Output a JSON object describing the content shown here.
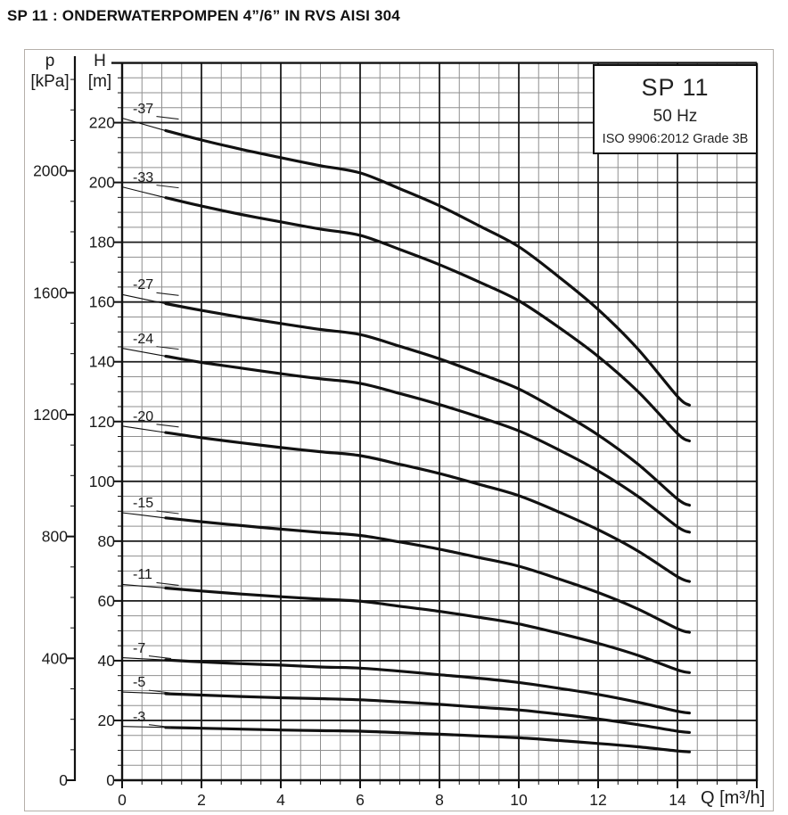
{
  "title": "SP 11 : ONDERWATERPOMPEN 4”/6” IN RVS AISI 304",
  "info_box": {
    "model": "SP 11",
    "frequency": "50 Hz",
    "standard": "ISO 9906:2012 Grade 3B"
  },
  "colors": {
    "curve": "#111111",
    "grid_minor": "#8f8f8f",
    "grid_major": "#1c1c1c",
    "axis": "#111111",
    "text": "#1a1a1a",
    "figure_border": "#b5b0aa"
  },
  "chart_data": {
    "type": "line",
    "title": "SP 11 pump performance curves, head vs flow",
    "x_axis": {
      "symbol": "Q",
      "unit_label": "Q [m³/h]",
      "min": 0,
      "max": 16,
      "major_step": 2,
      "minor_step": 0.5,
      "labeled_max": 14
    },
    "y_axis_primary": {
      "symbol": "H",
      "unit": "[m]",
      "min": 0,
      "max": 240,
      "major_step": 20,
      "minor_step": 5,
      "labeled_max": 220
    },
    "y_axis_secondary": {
      "symbol": "p",
      "unit": "[kPa]",
      "min": 0,
      "max": 2300,
      "major_step": 400,
      "minor_step": 100,
      "labeled_max": 2000,
      "kpa_per_m": 9.81
    },
    "min_flow_q": 1.1,
    "q_max": 14.3,
    "legend_position": "curve-start-labels",
    "grid": true,
    "series": [
      {
        "label": "-37",
        "stages": 37,
        "points": [
          [
            0,
            221.5
          ],
          [
            1,
            217.7
          ],
          [
            2,
            214.2
          ],
          [
            3,
            211.1
          ],
          [
            4,
            208.3
          ],
          [
            5,
            205.6
          ],
          [
            6,
            203.2
          ],
          [
            7,
            197.9
          ],
          [
            8,
            192.2
          ],
          [
            9,
            185.5
          ],
          [
            10,
            178.5
          ],
          [
            11,
            168.5
          ],
          [
            12,
            157.5
          ],
          [
            13,
            144.3
          ],
          [
            14,
            128.4
          ],
          [
            14.3,
            125.5
          ]
        ]
      },
      {
        "label": "-33",
        "stages": 33,
        "points": [
          [
            0,
            198.5
          ],
          [
            1,
            195.2
          ],
          [
            2,
            192.1
          ],
          [
            3,
            189.3
          ],
          [
            4,
            186.8
          ],
          [
            5,
            184.4
          ],
          [
            6,
            182.3
          ],
          [
            7,
            177.6
          ],
          [
            8,
            172.5
          ],
          [
            9,
            166.7
          ],
          [
            10,
            160.4
          ],
          [
            11,
            151.6
          ],
          [
            12,
            141.8
          ],
          [
            13,
            130.1
          ],
          [
            14,
            116.0
          ],
          [
            14.3,
            113.5
          ]
        ]
      },
      {
        "label": "-27",
        "stages": 27,
        "points": [
          [
            0,
            162.5
          ],
          [
            1,
            159.7
          ],
          [
            2,
            157.2
          ],
          [
            3,
            154.9
          ],
          [
            4,
            152.8
          ],
          [
            5,
            150.8
          ],
          [
            6,
            149.1
          ],
          [
            7,
            145.2
          ],
          [
            8,
            141.0
          ],
          [
            9,
            136.1
          ],
          [
            10,
            130.9
          ],
          [
            11,
            123.6
          ],
          [
            12,
            115.5
          ],
          [
            13,
            105.8
          ],
          [
            14,
            94.1
          ],
          [
            14.3,
            92.0
          ]
        ]
      },
      {
        "label": "-24",
        "stages": 24,
        "points": [
          [
            0,
            144.5
          ],
          [
            1,
            142.1
          ],
          [
            2,
            139.8
          ],
          [
            3,
            137.9
          ],
          [
            4,
            136.0
          ],
          [
            5,
            134.3
          ],
          [
            6,
            132.8
          ],
          [
            7,
            129.4
          ],
          [
            8,
            125.7
          ],
          [
            9,
            121.5
          ],
          [
            10,
            116.9
          ],
          [
            11,
            110.6
          ],
          [
            12,
            103.5
          ],
          [
            13,
            95.0
          ],
          [
            14,
            84.8
          ],
          [
            14.3,
            83.0
          ]
        ]
      },
      {
        "label": "-20",
        "stages": 20,
        "points": [
          [
            0,
            118.5
          ],
          [
            1,
            116.5
          ],
          [
            2,
            114.6
          ],
          [
            3,
            112.9
          ],
          [
            4,
            111.3
          ],
          [
            5,
            109.9
          ],
          [
            6,
            108.6
          ],
          [
            7,
            105.7
          ],
          [
            8,
            102.6
          ],
          [
            9,
            99.0
          ],
          [
            10,
            95.2
          ],
          [
            11,
            89.8
          ],
          [
            12,
            83.8
          ],
          [
            13,
            76.7
          ],
          [
            14,
            68.1
          ],
          [
            14.3,
            66.5
          ]
        ]
      },
      {
        "label": "-15",
        "stages": 15,
        "points": [
          [
            0,
            89.5
          ],
          [
            1,
            87.9
          ],
          [
            2,
            86.5
          ],
          [
            3,
            85.2
          ],
          [
            4,
            84.0
          ],
          [
            5,
            82.9
          ],
          [
            6,
            81.9
          ],
          [
            7,
            79.7
          ],
          [
            8,
            77.3
          ],
          [
            9,
            74.5
          ],
          [
            10,
            71.6
          ],
          [
            11,
            67.4
          ],
          [
            12,
            62.8
          ],
          [
            13,
            57.3
          ],
          [
            14,
            50.7
          ],
          [
            14.3,
            49.5
          ]
        ]
      },
      {
        "label": "-11",
        "stages": 11,
        "points": [
          [
            0,
            65.5
          ],
          [
            1,
            64.4
          ],
          [
            2,
            63.3
          ],
          [
            3,
            62.3
          ],
          [
            4,
            61.4
          ],
          [
            5,
            60.6
          ],
          [
            6,
            59.9
          ],
          [
            7,
            58.2
          ],
          [
            8,
            56.5
          ],
          [
            9,
            54.5
          ],
          [
            10,
            52.3
          ],
          [
            11,
            49.2
          ],
          [
            12,
            45.8
          ],
          [
            13,
            41.8
          ],
          [
            14,
            36.9
          ],
          [
            14.3,
            36.0
          ]
        ]
      },
      {
        "label": "-7",
        "stages": 7,
        "points": [
          [
            0,
            41.0
          ],
          [
            1,
            40.3
          ],
          [
            2,
            39.6
          ],
          [
            3,
            39.0
          ],
          [
            4,
            38.5
          ],
          [
            5,
            37.9
          ],
          [
            6,
            37.5
          ],
          [
            7,
            36.5
          ],
          [
            8,
            35.3
          ],
          [
            9,
            34.1
          ],
          [
            10,
            32.7
          ],
          [
            11,
            30.8
          ],
          [
            12,
            28.7
          ],
          [
            13,
            26.1
          ],
          [
            14,
            23.1
          ],
          [
            14.3,
            22.5
          ]
        ]
      },
      {
        "label": "-5",
        "stages": 5,
        "points": [
          [
            0,
            29.5
          ],
          [
            1,
            29.0
          ],
          [
            2,
            28.5
          ],
          [
            3,
            28.0
          ],
          [
            4,
            27.6
          ],
          [
            5,
            27.3
          ],
          [
            6,
            26.9
          ],
          [
            7,
            26.2
          ],
          [
            8,
            25.4
          ],
          [
            9,
            24.4
          ],
          [
            10,
            23.5
          ],
          [
            11,
            22.1
          ],
          [
            12,
            20.5
          ],
          [
            13,
            18.6
          ],
          [
            14,
            16.4
          ],
          [
            14.3,
            16.0
          ]
        ]
      },
      {
        "label": "-3",
        "stages": 3,
        "points": [
          [
            0,
            18.0
          ],
          [
            1,
            17.7
          ],
          [
            2,
            17.4
          ],
          [
            3,
            17.1
          ],
          [
            4,
            16.8
          ],
          [
            5,
            16.6
          ],
          [
            6,
            16.4
          ],
          [
            7,
            15.9
          ],
          [
            8,
            15.4
          ],
          [
            9,
            14.8
          ],
          [
            10,
            14.2
          ],
          [
            11,
            13.3
          ],
          [
            12,
            12.3
          ],
          [
            13,
            11.2
          ],
          [
            14,
            9.8
          ],
          [
            14.3,
            9.5
          ]
        ]
      }
    ]
  }
}
